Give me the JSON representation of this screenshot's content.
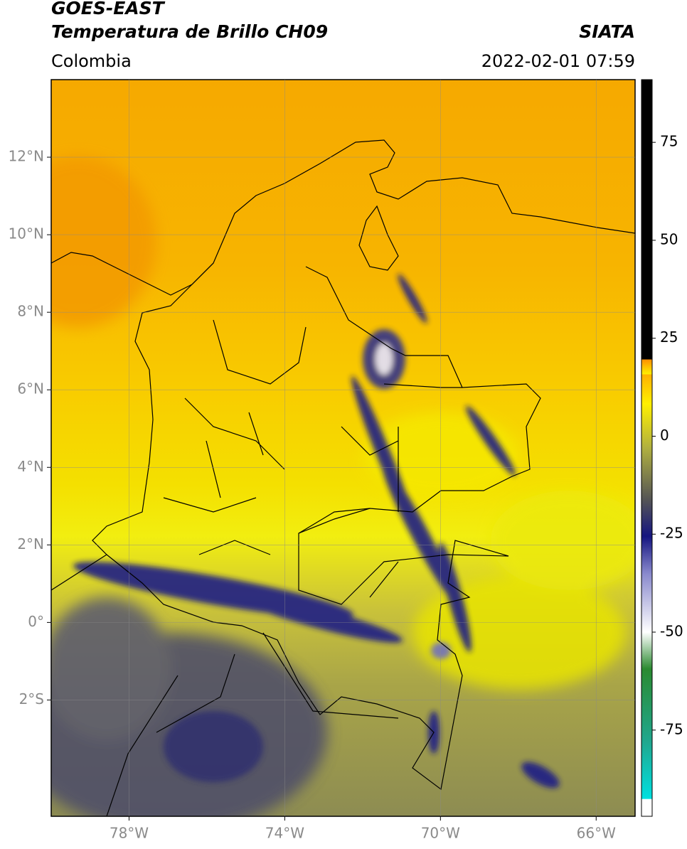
{
  "header": {
    "title": "GOES-EAST",
    "subtitle_title": "Temperatura de Brillo CH09",
    "source": "SIATA",
    "region": "Colombia",
    "datetime": "2022-02-01 07:59"
  },
  "map": {
    "xlim": [
      -80,
      -65
    ],
    "ylim": [
      -5,
      14
    ],
    "xticks": [
      {
        "value": -78,
        "label": "78°W"
      },
      {
        "value": -74,
        "label": "74°W"
      },
      {
        "value": -70,
        "label": "70°W"
      },
      {
        "value": -66,
        "label": "66°W"
      }
    ],
    "yticks": [
      {
        "value": 12,
        "label": "12°N"
      },
      {
        "value": 10,
        "label": "10°N"
      },
      {
        "value": 8,
        "label": "8°N"
      },
      {
        "value": 6,
        "label": "6°N"
      },
      {
        "value": 4,
        "label": "4°N"
      },
      {
        "value": 2,
        "label": "2°N"
      },
      {
        "value": 0,
        "label": "0°"
      },
      {
        "value": -2,
        "label": "2°S"
      }
    ],
    "grid": true
  },
  "colorbar": {
    "lim": [
      -97,
      91
    ],
    "ticks": [
      75,
      50,
      25,
      0,
      -25,
      -50,
      -75
    ]
  }
}
